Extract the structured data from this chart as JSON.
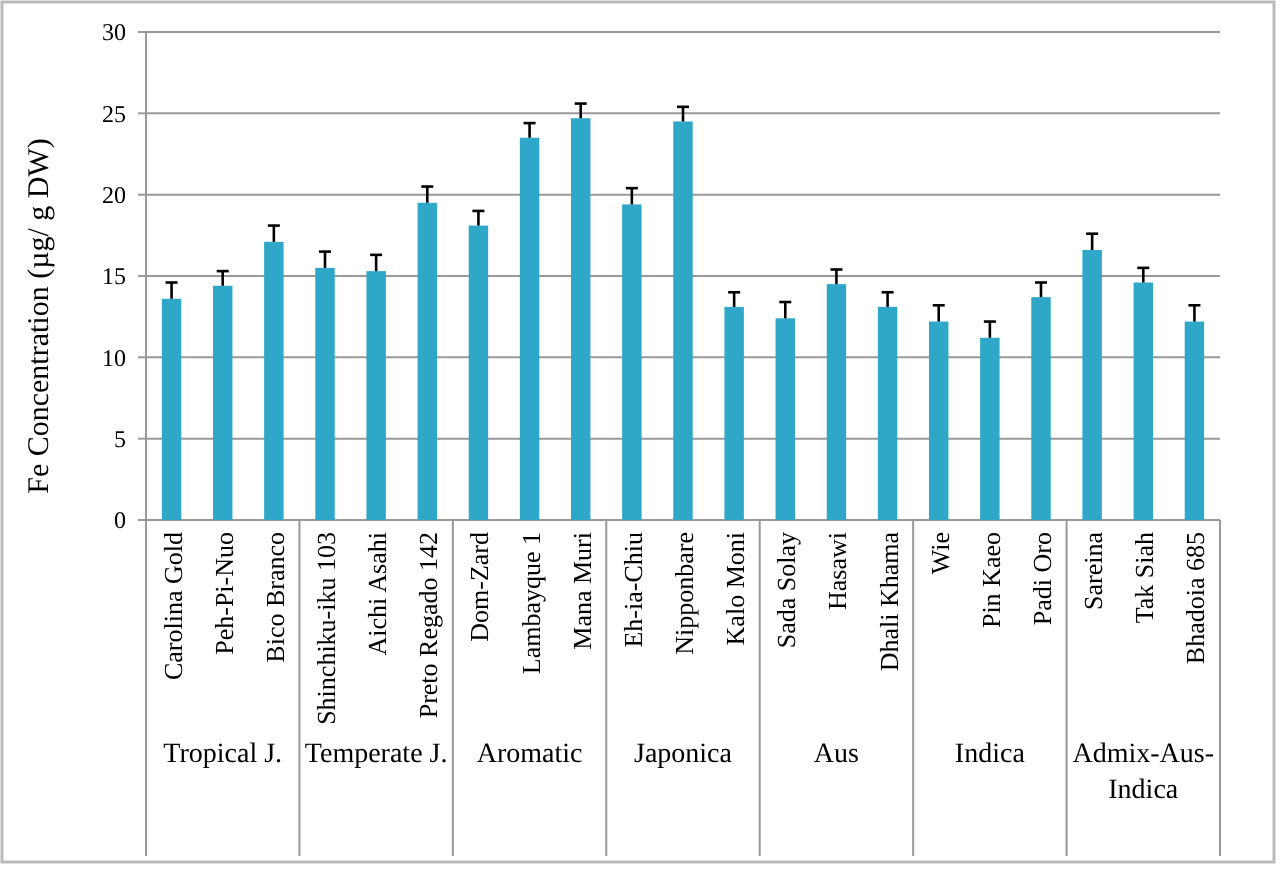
{
  "chart_data": {
    "type": "bar",
    "ylabel": "Fe Concentration (µg/ g DW)",
    "categories": [
      "Carolina Gold",
      "Peh-Pi-Nuo",
      "Bico Branco",
      "Shinchiku-iku 103",
      "Aichi Asahi",
      "Preto Regado 142",
      "Dom-Zard",
      "Lambayque 1",
      "Mana Muri",
      "Eh-ia-Chiu",
      "Nipponbare",
      "Kalo Moni",
      "Sada Solay",
      "Hasawi",
      "Dhali Khama",
      "Wie",
      "Pin Kaeo",
      "Padi Oro",
      "Sareina",
      "Tak Siah",
      "Bhadoia 685"
    ],
    "values": [
      13.6,
      14.4,
      17.1,
      15.5,
      15.3,
      19.5,
      18.1,
      23.5,
      24.7,
      19.4,
      24.5,
      13.1,
      12.4,
      14.5,
      13.1,
      12.2,
      11.2,
      13.7,
      16.6,
      14.6,
      12.2
    ],
    "errors": [
      1,
      0.9,
      1,
      1,
      1,
      1,
      0.9,
      0.9,
      0.9,
      1,
      0.9,
      0.9,
      1,
      0.9,
      0.9,
      1,
      1,
      0.9,
      1,
      0.9,
      1
    ],
    "color": "#2ea7c9",
    "ylim": [
      0,
      30
    ],
    "yticks": [
      0,
      5,
      10,
      15,
      20,
      25,
      30
    ],
    "grid": "y",
    "annotations": [
      "Tropical J.",
      "Temperate J.",
      "Aromatic",
      "Japonica",
      "Aus",
      "Indica",
      "Admix-Aus-Indica"
    ]
  }
}
